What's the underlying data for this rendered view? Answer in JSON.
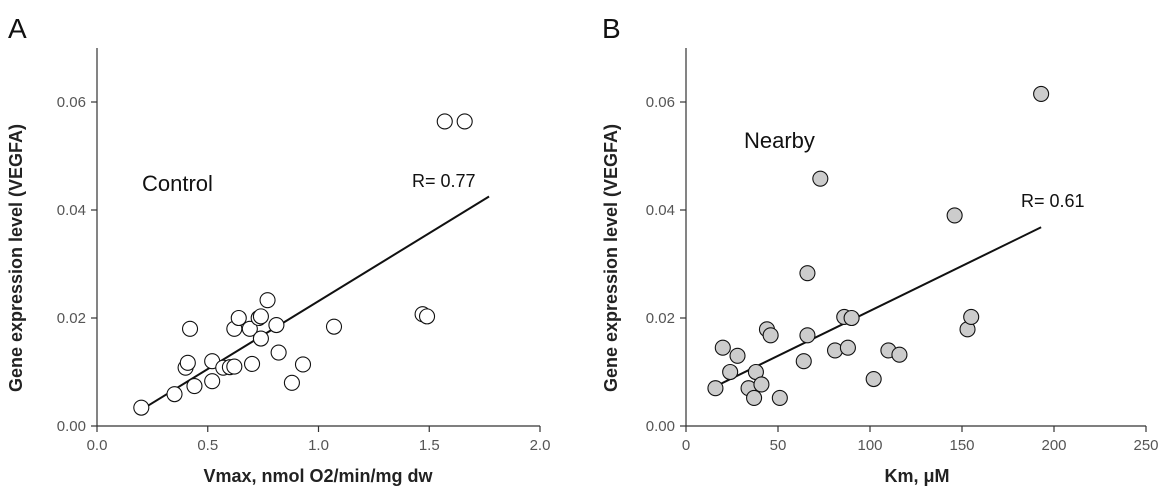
{
  "chart_data": [
    {
      "type": "scatter",
      "panel_label": "A",
      "annotation": "Control",
      "r_label": "R= 0.77",
      "xlabel": "Vmax, nmol O2/min/mg dw",
      "ylabel": "Gene expression level (VEGFA)",
      "xlim": [
        0,
        2.0
      ],
      "ylim": [
        0,
        0.07
      ],
      "x_ticks": [
        0.0,
        0.5,
        1.0,
        1.5,
        2.0
      ],
      "x_tick_labels": [
        "0.0",
        "0.5",
        "1.0",
        "1.5",
        "2.0"
      ],
      "y_ticks": [
        0.0,
        0.02,
        0.04,
        0.06
      ],
      "y_tick_labels": [
        "0.00",
        "0.02",
        "0.04",
        "0.06"
      ],
      "marker_fill": "#ffffff",
      "grid": false,
      "points": [
        {
          "x": 0.2,
          "y": 0.0034
        },
        {
          "x": 0.35,
          "y": 0.0059
        },
        {
          "x": 0.4,
          "y": 0.0108
        },
        {
          "x": 0.41,
          "y": 0.0117
        },
        {
          "x": 0.42,
          "y": 0.018
        },
        {
          "x": 0.44,
          "y": 0.0074
        },
        {
          "x": 0.52,
          "y": 0.0083
        },
        {
          "x": 0.52,
          "y": 0.012
        },
        {
          "x": 0.57,
          "y": 0.0108
        },
        {
          "x": 0.6,
          "y": 0.0109
        },
        {
          "x": 0.62,
          "y": 0.011
        },
        {
          "x": 0.62,
          "y": 0.018
        },
        {
          "x": 0.64,
          "y": 0.02
        },
        {
          "x": 0.69,
          "y": 0.018
        },
        {
          "x": 0.7,
          "y": 0.0115
        },
        {
          "x": 0.73,
          "y": 0.02
        },
        {
          "x": 0.74,
          "y": 0.0162
        },
        {
          "x": 0.74,
          "y": 0.0203
        },
        {
          "x": 0.77,
          "y": 0.0233
        },
        {
          "x": 0.81,
          "y": 0.0187
        },
        {
          "x": 0.82,
          "y": 0.0136
        },
        {
          "x": 0.88,
          "y": 0.008
        },
        {
          "x": 0.93,
          "y": 0.0114
        },
        {
          "x": 1.07,
          "y": 0.0184
        },
        {
          "x": 1.47,
          "y": 0.0207
        },
        {
          "x": 1.49,
          "y": 0.0203
        },
        {
          "x": 1.57,
          "y": 0.0564
        },
        {
          "x": 1.66,
          "y": 0.0564
        }
      ],
      "fit_line": {
        "x": [
          0.2,
          1.77
        ],
        "y": [
          0.003,
          0.0425
        ]
      }
    },
    {
      "type": "scatter",
      "panel_label": "B",
      "annotation": "Nearby",
      "r_label": "R= 0.61",
      "xlabel": "Km, μM",
      "ylabel": "Gene expression level (VEGFA)",
      "xlim": [
        0,
        250
      ],
      "ylim": [
        0,
        0.07
      ],
      "x_ticks": [
        0,
        50,
        100,
        150,
        200,
        250
      ],
      "x_tick_labels": [
        "0",
        "50",
        "100",
        "150",
        "200",
        "250"
      ],
      "y_ticks": [
        0.0,
        0.02,
        0.04,
        0.06
      ],
      "y_tick_labels": [
        "0.00",
        "0.02",
        "0.04",
        "0.06"
      ],
      "marker_fill": "#cccccc",
      "grid": false,
      "points": [
        {
          "x": 16,
          "y": 0.007
        },
        {
          "x": 20,
          "y": 0.0145
        },
        {
          "x": 24,
          "y": 0.01
        },
        {
          "x": 28,
          "y": 0.013
        },
        {
          "x": 34,
          "y": 0.007
        },
        {
          "x": 37,
          "y": 0.0052
        },
        {
          "x": 38,
          "y": 0.01
        },
        {
          "x": 41,
          "y": 0.0077
        },
        {
          "x": 44,
          "y": 0.0179
        },
        {
          "x": 46,
          "y": 0.0168
        },
        {
          "x": 51,
          "y": 0.0052
        },
        {
          "x": 64,
          "y": 0.012
        },
        {
          "x": 66,
          "y": 0.0283
        },
        {
          "x": 66,
          "y": 0.0168
        },
        {
          "x": 73,
          "y": 0.0458
        },
        {
          "x": 81,
          "y": 0.014
        },
        {
          "x": 86,
          "y": 0.0202
        },
        {
          "x": 88,
          "y": 0.0145
        },
        {
          "x": 90,
          "y": 0.02
        },
        {
          "x": 102,
          "y": 0.0087
        },
        {
          "x": 110,
          "y": 0.014
        },
        {
          "x": 116,
          "y": 0.0132
        },
        {
          "x": 146,
          "y": 0.039
        },
        {
          "x": 153,
          "y": 0.0179
        },
        {
          "x": 155,
          "y": 0.0202
        },
        {
          "x": 193,
          "y": 0.0615
        }
      ],
      "fit_line": {
        "x": [
          17,
          193
        ],
        "y": [
          0.0075,
          0.0368
        ]
      }
    }
  ]
}
